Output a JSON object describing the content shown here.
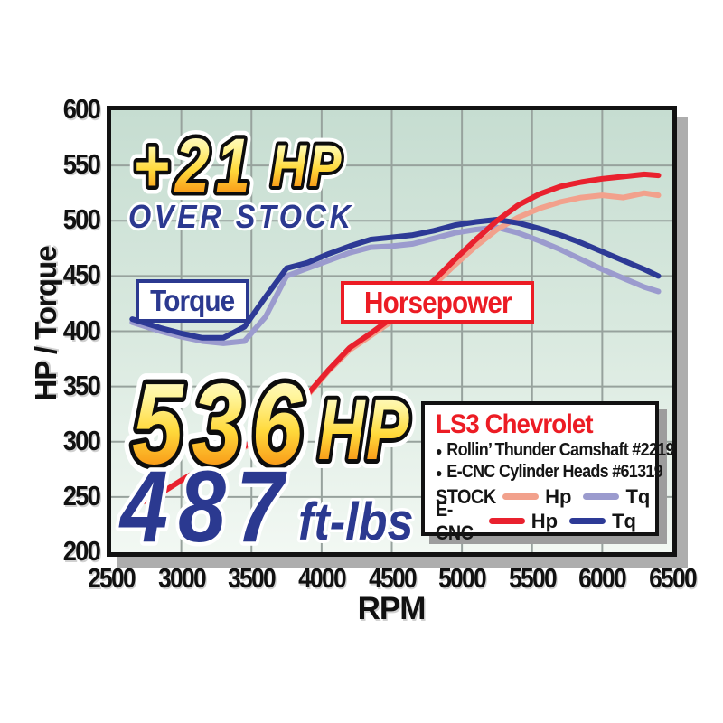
{
  "annotation": {
    "gain_value": "+21",
    "gain_unit": "HP",
    "gain_caption": "OVER STOCK"
  },
  "curve_labels": {
    "torque": "Torque",
    "horsepower": "Horsepower"
  },
  "result_callouts": {
    "hp_value": "536",
    "hp_unit": "HP",
    "tq_value": "487",
    "tq_unit": "ft-lbs"
  },
  "legend": {
    "title": "LS3 Chevrolet",
    "bullet_char": "●",
    "bullets": [
      "Rollin’ Thunder Camshaft #2219",
      "E-CNC Cylinder Heads #61319"
    ],
    "rows": [
      {
        "label": "STOCK",
        "hp_label": "Hp",
        "tq_label": "Tq"
      },
      {
        "label": "E-CNC",
        "hp_label": "Hp",
        "tq_label": "Tq"
      }
    ]
  },
  "axes": {
    "y_title": "HP / Torque",
    "x_title": "RPM",
    "y_ticks": [
      600,
      550,
      500,
      450,
      400,
      350,
      300,
      250,
      200
    ],
    "x_ticks": [
      2500,
      3000,
      3500,
      4000,
      4500,
      5000,
      5500,
      6000,
      6500
    ]
  },
  "colors": {
    "plot_bg_top": "#C6DDD1",
    "plot_bg_bottom": "#F2F8F3",
    "blue_text": "#2B3990",
    "red_text": "#EC1C24",
    "gold_top": "#FFFDE8",
    "gold_bottom": "#F57E20"
  },
  "chart_data": {
    "type": "line",
    "xlabel": "RPM",
    "ylabel": "HP / Torque",
    "xlim": [
      2500,
      6500
    ],
    "ylim": [
      200,
      600
    ],
    "grid_x": [
      3000,
      3500,
      4000,
      4500,
      5000,
      5500,
      6000
    ],
    "grid_y": [
      250,
      300,
      350,
      400,
      450,
      500,
      550
    ],
    "grid_color": "#97A29D",
    "x": [
      2650,
      2850,
      3000,
      3150,
      3300,
      3450,
      3600,
      3750,
      3900,
      4050,
      4200,
      4350,
      4500,
      4650,
      4800,
      4950,
      5100,
      5250,
      5400,
      5550,
      5700,
      5850,
      6000,
      6150,
      6300,
      6400
    ],
    "series": [
      {
        "key": "stock_tq",
        "name": "STOCK Tq",
        "color": "#9B9BCE",
        "width": 6,
        "values": [
          408,
          400,
          395,
          391,
          389,
          391,
          413,
          450,
          457,
          464,
          471,
          476,
          477,
          479,
          484,
          489,
          492,
          494,
          489,
          482,
          474,
          465,
          456,
          448,
          440,
          436
        ]
      },
      {
        "key": "stock_hp",
        "name": "STOCK Hp",
        "color": "#F2A18C",
        "width": 6,
        "values": [
          241,
          253,
          265,
          276,
          287,
          295,
          303,
          320,
          342,
          364,
          383,
          396,
          409,
          425,
          442,
          460,
          477,
          492,
          503,
          511,
          517,
          521,
          523,
          521,
          525,
          523
        ]
      },
      {
        "key": "ecnc_tq",
        "name": "E-CNC Tq",
        "color": "#2D3A96",
        "width": 6,
        "values": [
          411,
          403,
          398,
          394,
          394,
          404,
          431,
          457,
          462,
          470,
          477,
          483,
          485,
          487,
          491,
          496,
          499,
          501,
          498,
          493,
          487,
          480,
          472,
          464,
          456,
          450
        ]
      },
      {
        "key": "ecnc_hp",
        "name": "E-CNC Hp",
        "color": "#E9212E",
        "width": 6,
        "values": [
          241,
          253,
          265,
          276,
          287,
          296,
          305,
          322,
          343,
          365,
          385,
          398,
          412,
          428,
          446,
          465,
          483,
          500,
          514,
          524,
          531,
          535,
          538,
          540,
          542,
          541
        ]
      }
    ]
  }
}
